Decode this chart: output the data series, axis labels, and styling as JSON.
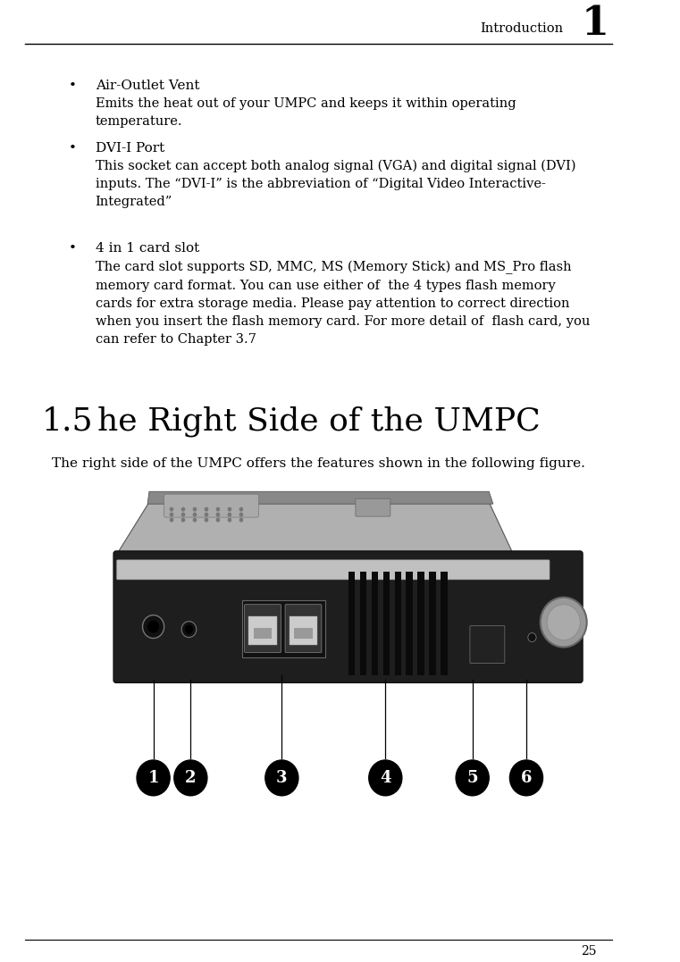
{
  "page_width": 7.61,
  "page_height": 10.77,
  "bg_color": "#ffffff",
  "header_text_right": "Introduction",
  "header_number": "1",
  "footer_page_number": "25",
  "bullet_items": [
    {
      "title": "Air-Outlet Vent",
      "body": "Emits the heat out of your UMPC and keeps it within operating\ntemperature."
    },
    {
      "title": "DVI-I Port",
      "body": "This socket can accept both analog signal (VGA) and digital signal (DVI)\ninputs. The “DVI-I” is the abbreviation of “Digital Video Interactive-\nIntegrated”"
    },
    {
      "title": "4 in 1 card slot",
      "body": "The card slot supports SD, MMC, MS (Memory Stick) and MS_Pro flash\nmemory card format. You can use either of  the 4 types flash memory\ncards for extra storage media. Please pay attention to correct direction\nwhen you insert the flash memory card. For more detail of  flash card, you\ncan refer to Chapter 3.7"
    }
  ],
  "section_number": "1.5",
  "section_title": "he Right Side of the UMPC",
  "section_body": "The right side of the UMPC offers the features shown in the following figure.",
  "diagram_numbers": [
    "1",
    "2",
    "3",
    "4",
    "5",
    "6"
  ],
  "text_color": "#000000"
}
